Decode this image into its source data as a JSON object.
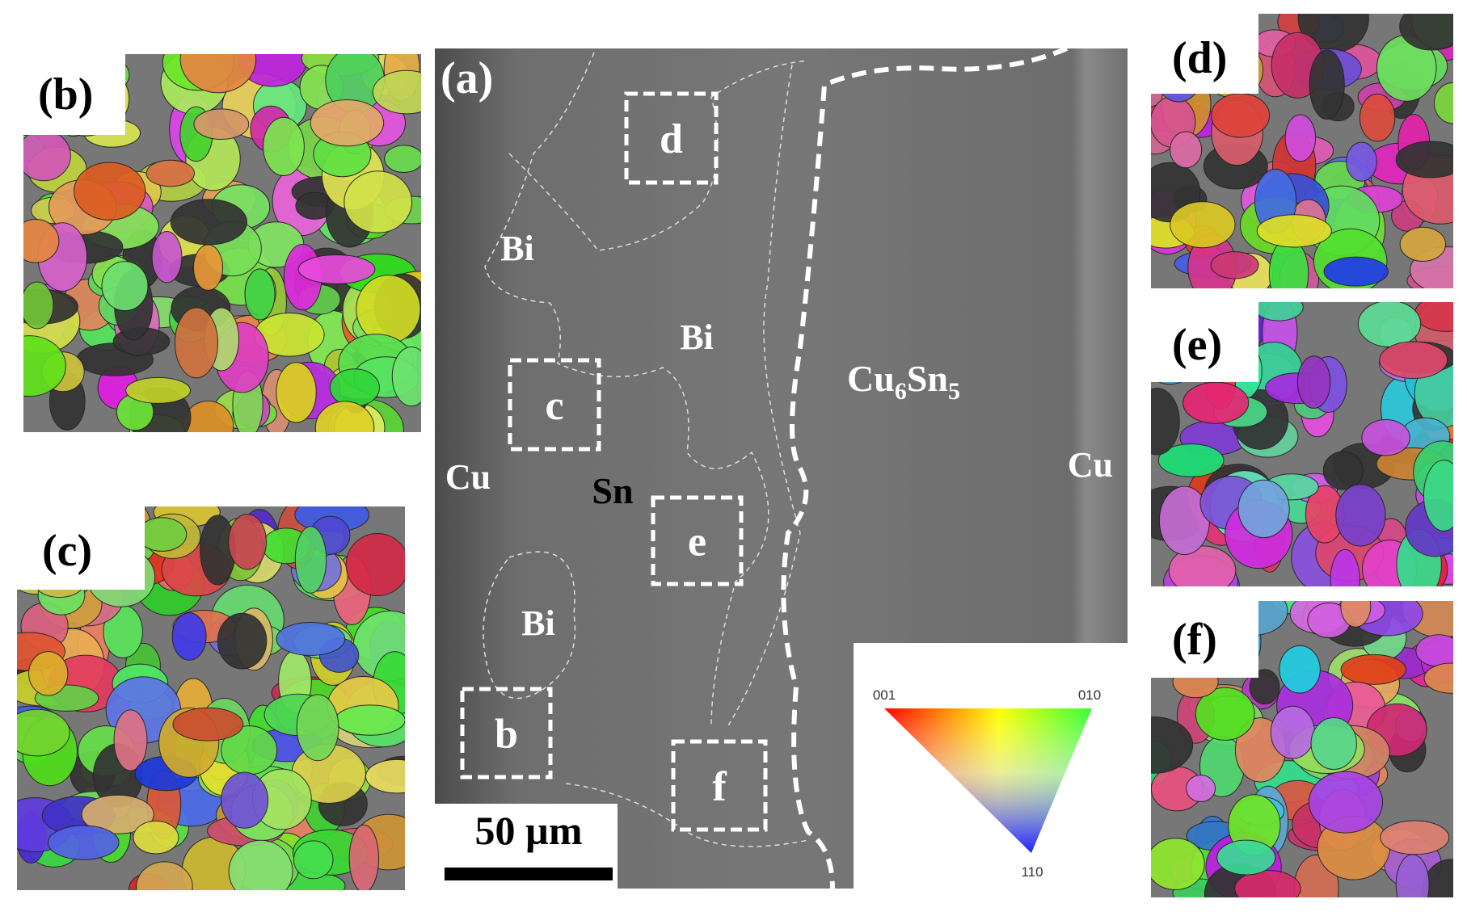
{
  "panel_labels": [
    "(a)",
    "(b)",
    "(c)",
    "(d)",
    "(e)",
    "(f)"
  ],
  "box_labels": [
    "d",
    "c",
    "e",
    "b",
    "f"
  ],
  "phase_labels": {
    "bi": [
      "Bi",
      "Bi",
      "Bi"
    ],
    "sn": "Sn",
    "cu": [
      "Cu",
      "Cu"
    ],
    "cu6sn5": [
      "Cu",
      "6",
      "Sn",
      "5"
    ]
  },
  "scale_bar": "50 µm",
  "legend": {
    "corners": [
      "001",
      "010",
      "110"
    ]
  }
}
